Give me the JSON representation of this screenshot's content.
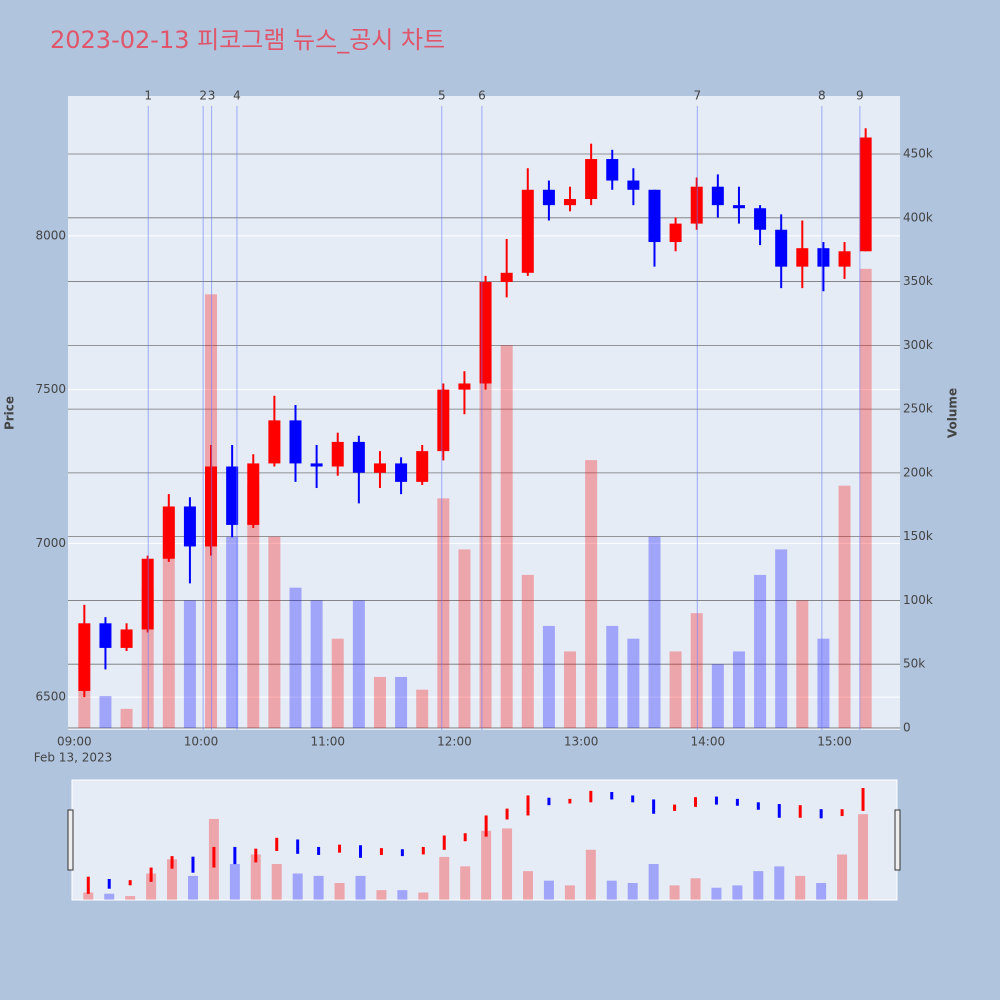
{
  "chart_data": {
    "type": "candlestick",
    "title": "2023-02-13 피코그램 뉴스_공시 차트",
    "x_date_label": "Feb 13, 2023",
    "y_label": "Price",
    "y2_label": "Volume",
    "up_color": "#ff0000",
    "down_color": "#0000ff",
    "x": [
      "09:00",
      "09:10",
      "09:20",
      "09:30",
      "09:40",
      "09:50",
      "10:00",
      "10:10",
      "10:20",
      "10:30",
      "10:40",
      "10:50",
      "11:00",
      "11:10",
      "11:20",
      "11:30",
      "11:40",
      "11:50",
      "12:00",
      "12:10",
      "12:20",
      "12:30",
      "12:40",
      "12:50",
      "13:00",
      "13:10",
      "13:20",
      "13:30",
      "13:40",
      "13:50",
      "14:00",
      "14:10",
      "14:20",
      "14:30",
      "14:40",
      "14:50",
      "15:00",
      "15:10"
    ],
    "open": [
      6520,
      6740,
      6660,
      6720,
      6950,
      7120,
      6990,
      7250,
      7060,
      7260,
      7400,
      7260,
      7250,
      7330,
      7230,
      7260,
      7200,
      7300,
      7500,
      7520,
      7850,
      7880,
      8150,
      8100,
      8120,
      8250,
      8180,
      8150,
      7980,
      8040,
      8160,
      8100,
      8090,
      8020,
      7900,
      7960,
      7900,
      7950
    ],
    "high": [
      6800,
      6760,
      6740,
      6960,
      7160,
      7150,
      7320,
      7320,
      7290,
      7480,
      7450,
      7320,
      7360,
      7350,
      7300,
      7280,
      7320,
      7520,
      7560,
      7870,
      7990,
      8220,
      8180,
      8160,
      8300,
      8280,
      8220,
      8150,
      8060,
      8190,
      8200,
      8160,
      8100,
      8070,
      8050,
      7980,
      7980,
      8350
    ],
    "low": [
      6500,
      6590,
      6650,
      6710,
      6940,
      6870,
      6960,
      7020,
      7050,
      7250,
      7200,
      7180,
      7220,
      7130,
      7180,
      7160,
      7190,
      7270,
      7420,
      7500,
      7800,
      7870,
      8050,
      8080,
      8100,
      8150,
      8100,
      7900,
      7950,
      8020,
      8060,
      8040,
      7970,
      7830,
      7830,
      7820,
      7860,
      7950
    ],
    "close": [
      6740,
      6660,
      6720,
      6950,
      7120,
      6990,
      7250,
      7060,
      7260,
      7400,
      7260,
      7250,
      7330,
      7230,
      7260,
      7200,
      7300,
      7500,
      7520,
      7850,
      7880,
      8150,
      8100,
      8120,
      8250,
      8180,
      8150,
      7980,
      8040,
      8160,
      8100,
      8090,
      8020,
      7900,
      7960,
      7900,
      7950,
      8320
    ],
    "volume": [
      30000,
      25000,
      15000,
      110000,
      170000,
      100000,
      340000,
      150000,
      190000,
      150000,
      110000,
      100000,
      70000,
      100000,
      40000,
      40000,
      30000,
      180000,
      140000,
      290000,
      300000,
      120000,
      80000,
      60000,
      210000,
      80000,
      70000,
      150000,
      60000,
      90000,
      50000,
      60000,
      120000,
      140000,
      100000,
      70000,
      190000,
      360000
    ],
    "xlim": [
      "08:57",
      "15:31"
    ],
    "xticks": [
      "09:00",
      "10:00",
      "11:00",
      "12:00",
      "13:00",
      "14:00",
      "15:00"
    ],
    "ylim": [
      6393,
      8455
    ],
    "yticks": [
      6500,
      7000,
      7500,
      8000
    ],
    "y2lim": [
      -1600,
      495500
    ],
    "y2ticks": [
      0,
      {
        "value": 50000,
        "label": "50k"
      },
      {
        "value": 100000,
        "label": "100k"
      },
      {
        "value": 150000,
        "label": "150k"
      },
      {
        "value": 200000,
        "label": "200k"
      },
      {
        "value": 250000,
        "label": "250k"
      },
      {
        "value": 300000,
        "label": "300k"
      },
      {
        "value": 350000,
        "label": "350k"
      },
      {
        "value": 400000,
        "label": "400k"
      },
      {
        "value": 450000,
        "label": "450k"
      }
    ],
    "events": {
      "x": [
        "09:35",
        "10:01",
        "10:05",
        "10:17",
        "11:54",
        "12:13",
        "13:55",
        "14:54",
        "15:12"
      ],
      "labels": [
        "1",
        "2",
        "3",
        "4",
        "5",
        "6",
        "7",
        "8",
        "9"
      ]
    }
  }
}
